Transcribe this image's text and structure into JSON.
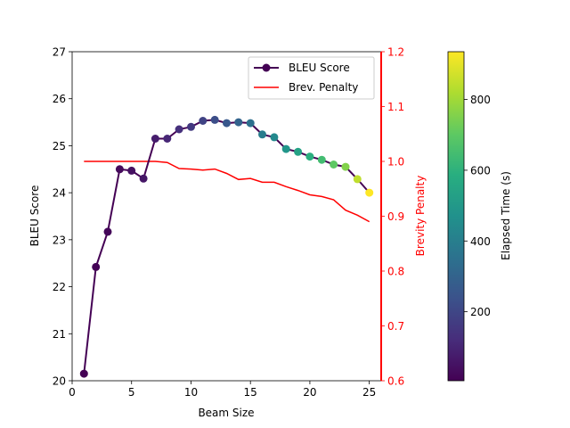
{
  "chart_data": {
    "type": "line",
    "xlabel": "Beam Size",
    "ylabel": "BLEU Score",
    "y2label": "Brevity Penalty",
    "colorbar_label": "Elapsed Time (s)",
    "xlim": [
      0,
      26
    ],
    "ylim": [
      20,
      27
    ],
    "y2lim": [
      0.6,
      1.2
    ],
    "colorbar_range": [
      5,
      935
    ],
    "x_ticks": [
      "0",
      "5",
      "10",
      "15",
      "20",
      "25"
    ],
    "y_ticks": [
      "20",
      "21",
      "22",
      "23",
      "24",
      "25",
      "26",
      "27"
    ],
    "y2_ticks": [
      "0.6",
      "0.7",
      "0.8",
      "0.9",
      "1.0",
      "1.1",
      "1.2"
    ],
    "colorbar_ticks": [
      "200",
      "400",
      "600",
      "800"
    ],
    "grid": false,
    "legend_position": "upper-right",
    "x": [
      1,
      2,
      3,
      4,
      5,
      6,
      7,
      8,
      9,
      10,
      11,
      12,
      13,
      14,
      15,
      16,
      17,
      18,
      19,
      20,
      21,
      22,
      23,
      24,
      25
    ],
    "series": [
      {
        "name": "BLEU Score",
        "axis": "left",
        "color_line": "#440154",
        "values": [
          20.15,
          22.42,
          23.17,
          24.5,
          24.47,
          24.3,
          25.15,
          25.15,
          25.35,
          25.4,
          25.53,
          25.55,
          25.48,
          25.5,
          25.48,
          25.24,
          25.18,
          24.93,
          24.87,
          24.77,
          24.7,
          24.6,
          24.55,
          24.29,
          24.0
        ],
        "elapsed_time_s": [
          5,
          10,
          20,
          30,
          45,
          60,
          80,
          105,
          130,
          160,
          190,
          225,
          260,
          300,
          345,
          390,
          440,
          490,
          540,
          590,
          645,
          700,
          755,
          845,
          935
        ]
      },
      {
        "name": "Brev. Penalty",
        "axis": "right",
        "color_line": "#ff0000",
        "values": [
          1.0,
          1.0,
          1.0,
          1.0,
          1.0,
          1.0,
          1.0,
          0.998,
          0.987,
          0.986,
          0.984,
          0.986,
          0.978,
          0.967,
          0.969,
          0.962,
          0.962,
          0.954,
          0.947,
          0.939,
          0.936,
          0.93,
          0.911,
          0.902,
          0.89
        ]
      }
    ]
  }
}
